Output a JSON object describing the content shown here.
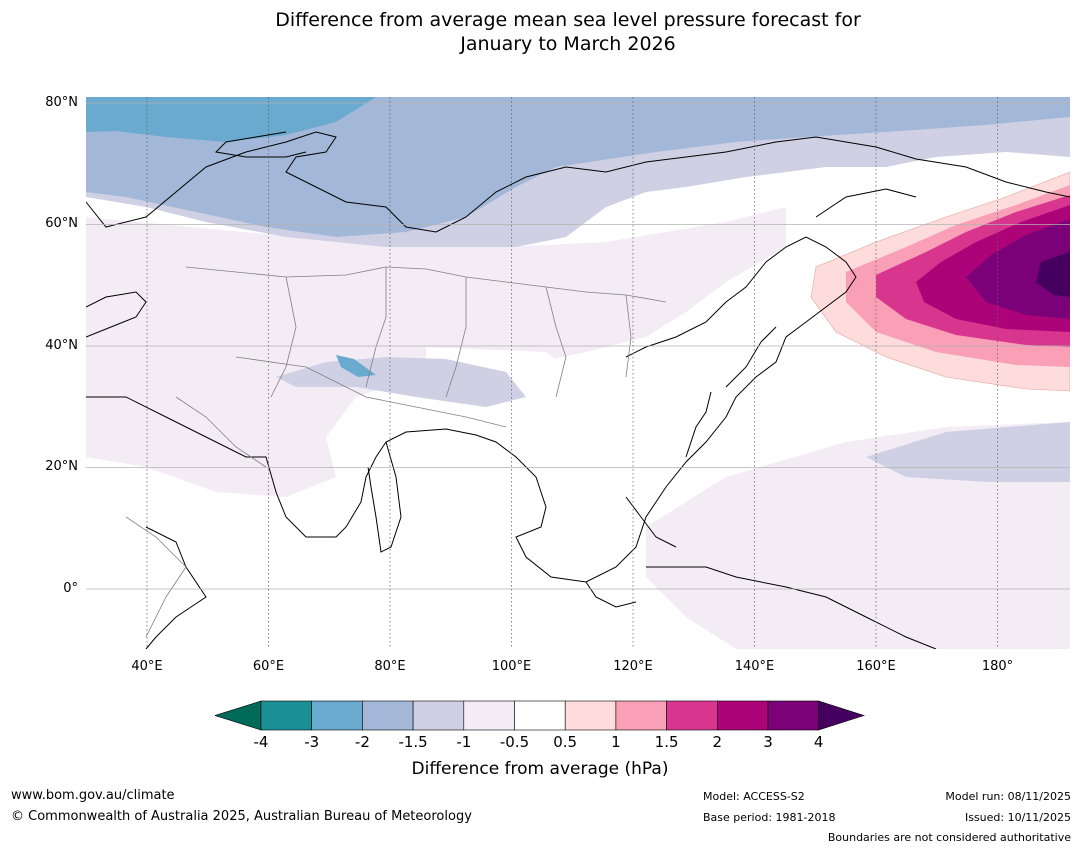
{
  "title": {
    "line1": "Difference from average mean sea level pressure forecast for",
    "line2": "January to March 2026"
  },
  "map": {
    "lat_labels": [
      "80°N",
      "60°N",
      "40°N",
      "20°N",
      "0°"
    ],
    "lon_labels": [
      "40°E",
      "60°E",
      "80°E",
      "100°E",
      "120°E",
      "140°E",
      "160°E",
      "180°"
    ],
    "lat_range": [
      -10,
      81
    ],
    "lon_range": [
      30,
      192
    ],
    "anomaly_centre": {
      "lon": 189,
      "lat": 52,
      "value": "above 4 hPa"
    }
  },
  "colorbar": {
    "title": "Difference from average (hPa)",
    "ticks": [
      "-4",
      "-3",
      "-2",
      "-1.5",
      "-1",
      "-0.5",
      "0.5",
      "1",
      "1.5",
      "2",
      "3",
      "4"
    ],
    "low_extend_color": "#006a58",
    "high_extend_color": "#45005f",
    "colors": [
      "#1a8f95",
      "#6aaacf",
      "#a3b8d8",
      "#cfd0e4",
      "#f3ecf5",
      "#ffffff",
      "#ffdcdc",
      "#f99fb6",
      "#d8368e",
      "#ad0379",
      "#7a0177"
    ]
  },
  "footer": {
    "url": "www.bom.gov.au/climate",
    "copyright": "© Commonwealth of Australia 2025, Australian Bureau of Meteorology",
    "model": "Model: ACCESS-S2",
    "base_period": "Base period: 1981-2018",
    "model_run": "Model run: 08/11/2025",
    "issued": "Issued: 10/11/2025",
    "disclaimer": "Boundaries are not considered authoritative"
  }
}
